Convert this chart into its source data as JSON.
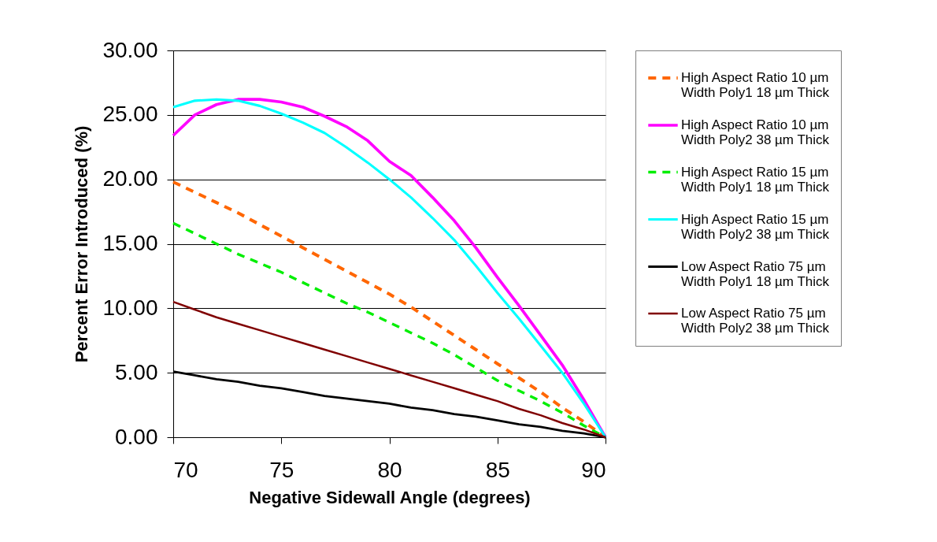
{
  "chart_data": {
    "type": "line",
    "xlabel": "Negative Sidewall Angle (degrees)",
    "ylabel": "Percent Error Introduced (%)",
    "xlim": [
      70,
      90
    ],
    "xticks": [
      70,
      75,
      80,
      85,
      90
    ],
    "ylim": [
      0,
      30
    ],
    "yticks": [
      {
        "value": 0,
        "label": "0.00"
      },
      {
        "value": 5,
        "label": "5.00"
      },
      {
        "value": 10,
        "label": "10.00"
      },
      {
        "value": 15,
        "label": "15.00"
      },
      {
        "value": 20,
        "label": "20.00"
      },
      {
        "value": 25,
        "label": "25.00"
      },
      {
        "value": 30,
        "label": "30.00"
      }
    ],
    "grid": "y",
    "legend": "right",
    "marker": "none",
    "x": [
      70,
      71,
      72,
      73,
      74,
      75,
      76,
      77,
      78,
      79,
      80,
      81,
      82,
      83,
      84,
      85,
      86,
      87,
      88,
      89,
      90
    ],
    "series": [
      {
        "name": "High Aspect Ratio 10 µm\nWidth Poly1 18 µm Thick",
        "color": "#ff6600",
        "line_style": "dashed",
        "values": [
          19.8,
          19.0,
          18.2,
          17.4,
          16.5,
          15.6,
          14.7,
          13.8,
          12.9,
          12.0,
          11.1,
          10.1,
          9.0,
          7.9,
          6.8,
          5.7,
          4.6,
          3.5,
          2.3,
          1.2,
          0
        ]
      },
      {
        "name": "High Aspect Ratio 10 µm\nWidth Poly2 38 µm Thick",
        "color": "#ff00ff",
        "line_style": "solid",
        "values": [
          23.4,
          25.0,
          25.8,
          26.2,
          26.2,
          26.0,
          25.6,
          24.9,
          24.1,
          23.0,
          21.4,
          20.3,
          18.6,
          16.8,
          14.7,
          12.4,
          10.2,
          7.9,
          5.6,
          2.9,
          0
        ]
      },
      {
        "name": "High Aspect Ratio 15 µm\nWidth Poly1 18 µm Thick",
        "color": "#00ee00",
        "line_style": "dashed",
        "values": [
          16.6,
          15.8,
          15.0,
          14.2,
          13.5,
          12.8,
          12.0,
          11.2,
          10.4,
          9.7,
          8.9,
          8.1,
          7.3,
          6.4,
          5.4,
          4.4,
          3.6,
          2.8,
          1.9,
          0.9,
          0
        ]
      },
      {
        "name": "High Aspect Ratio 15 µm\nWidth Poly2 38 µm Thick",
        "color": "#00ffff",
        "line_style": "solid",
        "values": [
          25.6,
          26.1,
          26.2,
          26.1,
          25.7,
          25.1,
          24.4,
          23.6,
          22.5,
          21.3,
          20.0,
          18.6,
          17.0,
          15.3,
          13.3,
          11.2,
          9.2,
          7.1,
          5.0,
          2.6,
          0
        ]
      },
      {
        "name": "Low Aspect Ratio 75 µm\nWidth Poly1 18 µm Thick",
        "color": "#000000",
        "line_style": "solid",
        "values": [
          5.1,
          4.8,
          4.5,
          4.3,
          4.0,
          3.8,
          3.5,
          3.2,
          3.0,
          2.8,
          2.6,
          2.3,
          2.1,
          1.8,
          1.6,
          1.3,
          1.0,
          0.8,
          0.5,
          0.3,
          0
        ]
      },
      {
        "name": "Low Aspect Ratio 75 µm\nWidth Poly2 38 µm Thick",
        "color": "#800000",
        "line_style": "solid",
        "values": [
          10.5,
          9.9,
          9.3,
          8.8,
          8.3,
          7.8,
          7.3,
          6.8,
          6.3,
          5.8,
          5.3,
          4.8,
          4.3,
          3.8,
          3.3,
          2.8,
          2.2,
          1.7,
          1.1,
          0.6,
          0
        ]
      }
    ]
  }
}
